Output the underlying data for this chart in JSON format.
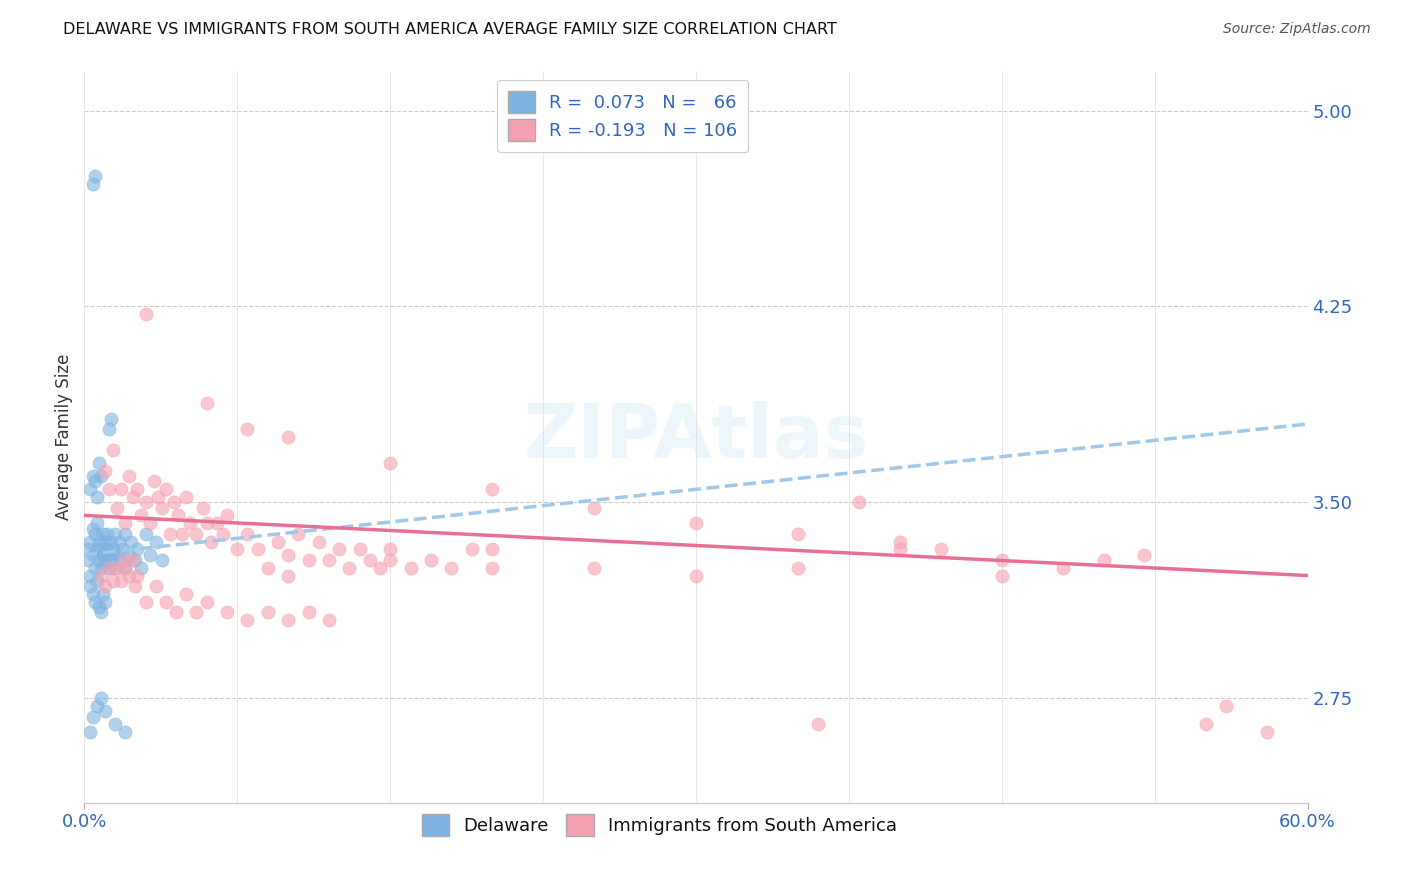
{
  "title": "DELAWARE VS IMMIGRANTS FROM SOUTH AMERICA AVERAGE FAMILY SIZE CORRELATION CHART",
  "source": "Source: ZipAtlas.com",
  "ylabel": "Average Family Size",
  "right_yticks": [
    2.75,
    3.5,
    4.25,
    5.0
  ],
  "blue_color": "#7EB3E0",
  "pink_color": "#F5A0B0",
  "trendline_blue_color": "#A0C8E8",
  "trendline_pink_color": "#E87090",
  "xmin": 0.0,
  "xmax": 0.6,
  "ymin": 2.35,
  "ymax": 5.15,
  "blue_trendline_pts": [
    [
      0.0,
      3.3
    ],
    [
      0.6,
      3.8
    ]
  ],
  "pink_trendline_pts": [
    [
      0.0,
      3.45
    ],
    [
      0.6,
      3.22
    ]
  ],
  "blue_scatter": [
    [
      0.002,
      3.32
    ],
    [
      0.002,
      3.28
    ],
    [
      0.003,
      3.35
    ],
    [
      0.003,
      3.22
    ],
    [
      0.004,
      3.4
    ],
    [
      0.004,
      3.3
    ],
    [
      0.005,
      3.38
    ],
    [
      0.005,
      3.25
    ],
    [
      0.006,
      3.42
    ],
    [
      0.006,
      3.32
    ],
    [
      0.007,
      3.28
    ],
    [
      0.007,
      3.35
    ],
    [
      0.008,
      3.32
    ],
    [
      0.008,
      3.25
    ],
    [
      0.009,
      3.38
    ],
    [
      0.009,
      3.3
    ],
    [
      0.01,
      3.35
    ],
    [
      0.01,
      3.28
    ],
    [
      0.011,
      3.32
    ],
    [
      0.011,
      3.38
    ],
    [
      0.012,
      3.3
    ],
    [
      0.012,
      3.25
    ],
    [
      0.013,
      3.35
    ],
    [
      0.013,
      3.28
    ],
    [
      0.014,
      3.32
    ],
    [
      0.015,
      3.38
    ],
    [
      0.015,
      3.25
    ],
    [
      0.016,
      3.3
    ],
    [
      0.017,
      3.35
    ],
    [
      0.018,
      3.28
    ],
    [
      0.019,
      3.32
    ],
    [
      0.02,
      3.38
    ],
    [
      0.02,
      3.25
    ],
    [
      0.022,
      3.3
    ],
    [
      0.023,
      3.35
    ],
    [
      0.025,
      3.28
    ],
    [
      0.026,
      3.32
    ],
    [
      0.028,
      3.25
    ],
    [
      0.03,
      3.38
    ],
    [
      0.032,
      3.3
    ],
    [
      0.035,
      3.35
    ],
    [
      0.038,
      3.28
    ],
    [
      0.003,
      3.18
    ],
    [
      0.004,
      3.15
    ],
    [
      0.005,
      3.12
    ],
    [
      0.006,
      3.2
    ],
    [
      0.007,
      3.1
    ],
    [
      0.008,
      3.08
    ],
    [
      0.009,
      3.15
    ],
    [
      0.01,
      3.12
    ],
    [
      0.003,
      3.55
    ],
    [
      0.004,
      3.6
    ],
    [
      0.005,
      3.58
    ],
    [
      0.006,
      3.52
    ],
    [
      0.007,
      3.65
    ],
    [
      0.008,
      3.6
    ],
    [
      0.004,
      4.72
    ],
    [
      0.005,
      4.75
    ],
    [
      0.012,
      3.78
    ],
    [
      0.013,
      3.82
    ],
    [
      0.003,
      2.62
    ],
    [
      0.004,
      2.68
    ],
    [
      0.006,
      2.72
    ],
    [
      0.008,
      2.75
    ],
    [
      0.01,
      2.7
    ],
    [
      0.015,
      2.65
    ],
    [
      0.02,
      2.62
    ]
  ],
  "pink_scatter": [
    [
      0.01,
      3.62
    ],
    [
      0.012,
      3.55
    ],
    [
      0.014,
      3.7
    ],
    [
      0.016,
      3.48
    ],
    [
      0.018,
      3.55
    ],
    [
      0.02,
      3.42
    ],
    [
      0.022,
      3.6
    ],
    [
      0.024,
      3.52
    ],
    [
      0.026,
      3.55
    ],
    [
      0.028,
      3.45
    ],
    [
      0.03,
      3.5
    ],
    [
      0.032,
      3.42
    ],
    [
      0.034,
      3.58
    ],
    [
      0.036,
      3.52
    ],
    [
      0.038,
      3.48
    ],
    [
      0.04,
      3.55
    ],
    [
      0.042,
      3.38
    ],
    [
      0.044,
      3.5
    ],
    [
      0.046,
      3.45
    ],
    [
      0.048,
      3.38
    ],
    [
      0.05,
      3.52
    ],
    [
      0.052,
      3.42
    ],
    [
      0.055,
      3.38
    ],
    [
      0.058,
      3.48
    ],
    [
      0.06,
      3.42
    ],
    [
      0.062,
      3.35
    ],
    [
      0.065,
      3.42
    ],
    [
      0.068,
      3.38
    ],
    [
      0.07,
      3.45
    ],
    [
      0.075,
      3.32
    ],
    [
      0.08,
      3.38
    ],
    [
      0.085,
      3.32
    ],
    [
      0.09,
      3.25
    ],
    [
      0.095,
      3.35
    ],
    [
      0.1,
      3.3
    ],
    [
      0.105,
      3.38
    ],
    [
      0.11,
      3.28
    ],
    [
      0.115,
      3.35
    ],
    [
      0.12,
      3.28
    ],
    [
      0.125,
      3.32
    ],
    [
      0.13,
      3.25
    ],
    [
      0.135,
      3.32
    ],
    [
      0.14,
      3.28
    ],
    [
      0.145,
      3.25
    ],
    [
      0.15,
      3.32
    ],
    [
      0.16,
      3.25
    ],
    [
      0.17,
      3.28
    ],
    [
      0.18,
      3.25
    ],
    [
      0.19,
      3.32
    ],
    [
      0.2,
      3.25
    ],
    [
      0.02,
      3.25
    ],
    [
      0.025,
      3.18
    ],
    [
      0.03,
      3.12
    ],
    [
      0.035,
      3.18
    ],
    [
      0.04,
      3.12
    ],
    [
      0.045,
      3.08
    ],
    [
      0.05,
      3.15
    ],
    [
      0.055,
      3.08
    ],
    [
      0.06,
      3.12
    ],
    [
      0.07,
      3.08
    ],
    [
      0.08,
      3.05
    ],
    [
      0.09,
      3.08
    ],
    [
      0.1,
      3.05
    ],
    [
      0.11,
      3.08
    ],
    [
      0.12,
      3.05
    ],
    [
      0.008,
      3.22
    ],
    [
      0.01,
      3.18
    ],
    [
      0.012,
      3.25
    ],
    [
      0.014,
      3.2
    ],
    [
      0.016,
      3.25
    ],
    [
      0.018,
      3.2
    ],
    [
      0.02,
      3.28
    ],
    [
      0.022,
      3.22
    ],
    [
      0.024,
      3.28
    ],
    [
      0.026,
      3.22
    ],
    [
      0.03,
      4.22
    ],
    [
      0.06,
      3.88
    ],
    [
      0.08,
      3.78
    ],
    [
      0.1,
      3.75
    ],
    [
      0.15,
      3.65
    ],
    [
      0.2,
      3.55
    ],
    [
      0.25,
      3.48
    ],
    [
      0.3,
      3.42
    ],
    [
      0.35,
      3.38
    ],
    [
      0.4,
      3.32
    ],
    [
      0.35,
      3.25
    ],
    [
      0.45,
      3.28
    ],
    [
      0.3,
      3.22
    ],
    [
      0.2,
      3.32
    ],
    [
      0.25,
      3.25
    ],
    [
      0.15,
      3.28
    ],
    [
      0.1,
      3.22
    ],
    [
      0.4,
      3.35
    ],
    [
      0.5,
      3.28
    ],
    [
      0.45,
      3.22
    ],
    [
      0.55,
      2.65
    ],
    [
      0.58,
      2.62
    ],
    [
      0.38,
      3.5
    ],
    [
      0.42,
      3.32
    ],
    [
      0.48,
      3.25
    ],
    [
      0.52,
      3.3
    ],
    [
      0.36,
      2.65
    ],
    [
      0.56,
      2.72
    ]
  ]
}
